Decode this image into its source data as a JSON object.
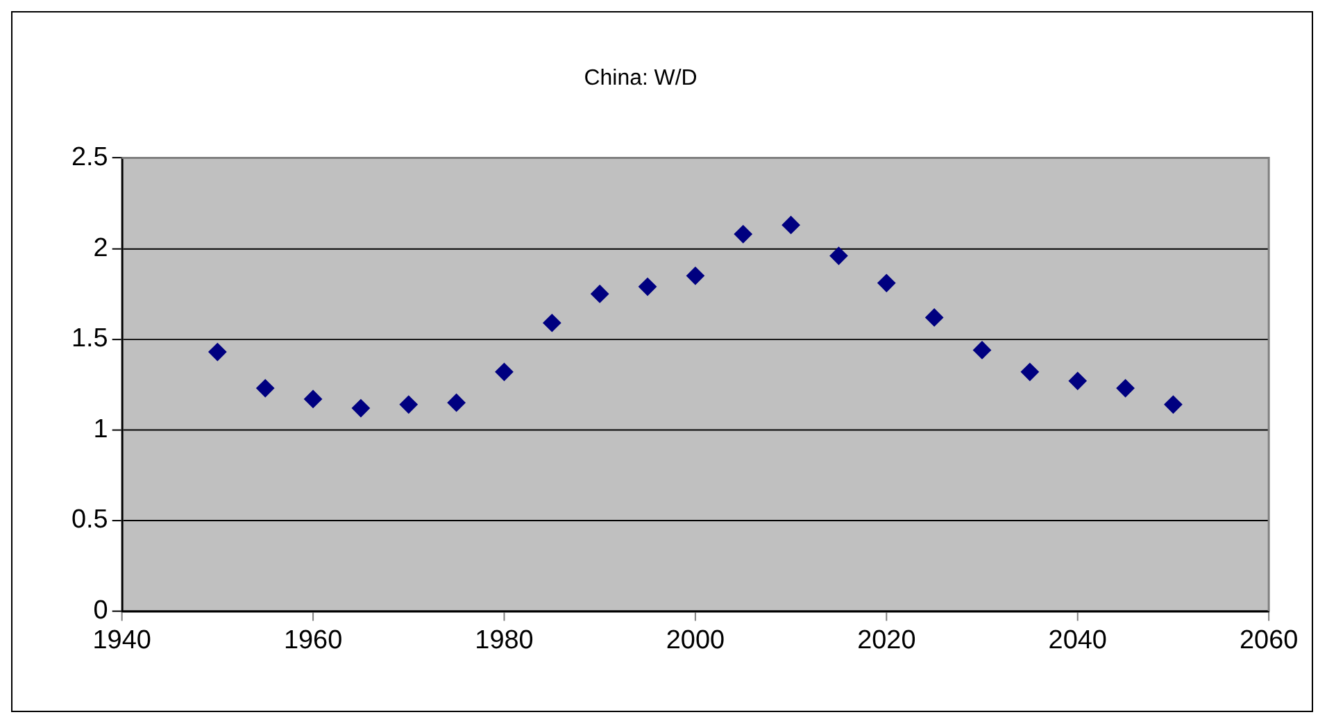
{
  "chart_data": {
    "type": "scatter",
    "title": "China: W/D",
    "x": [
      1950,
      1955,
      1960,
      1965,
      1970,
      1975,
      1980,
      1985,
      1990,
      1995,
      2000,
      2005,
      2010,
      2015,
      2020,
      2025,
      2030,
      2035,
      2040,
      2045,
      2050
    ],
    "series": [
      {
        "color": "#000080",
        "values": [
          1.43,
          1.23,
          1.17,
          1.12,
          1.14,
          1.15,
          1.32,
          1.59,
          1.75,
          1.79,
          1.85,
          2.08,
          2.13,
          1.96,
          1.81,
          1.62,
          1.44,
          1.32,
          1.27,
          1.23,
          1.14
        ]
      }
    ],
    "xlim": [
      1940,
      2060
    ],
    "xticks": [
      1940,
      1960,
      1980,
      2000,
      2020,
      2040,
      2060
    ],
    "ylim": [
      0,
      2.5
    ],
    "yticks": [
      0,
      0.5,
      1,
      1.5,
      2,
      2.5
    ],
    "grid": "y",
    "legend": false,
    "marker": "diamond"
  }
}
